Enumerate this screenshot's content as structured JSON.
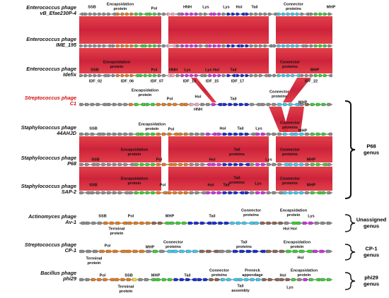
{
  "genomes": [
    {
      "line1": "Enterococcus phage",
      "line2": "vB_Efae230P-4",
      "annotations": [
        [
          "SSB"
        ],
        [
          "Encapsidation",
          "protein"
        ],
        [
          "Pol"
        ],
        [
          "HNH"
        ],
        [
          "Lys"
        ],
        [
          "Lys"
        ],
        [
          "Hol"
        ],
        [
          "Tail"
        ],
        [
          "Connector",
          "proteins"
        ],
        [
          "MHP"
        ]
      ]
    },
    {
      "line1": "Enterococcus phage",
      "line2": "IME_195",
      "annotations": []
    },
    {
      "line1": "Enterococcus phage",
      "line2": "Idefix",
      "annotations": [
        [
          "SSB"
        ],
        [
          "Encapsidation",
          "protein"
        ],
        [
          "Pol"
        ],
        [
          "HNH"
        ],
        [
          "Lys"
        ],
        [
          "Lys Hol"
        ],
        [
          "Tail"
        ],
        [
          "Connector",
          "proteins"
        ],
        [
          "MHP"
        ],
        [
          "IDF_02"
        ],
        [
          "IDF_06"
        ],
        [
          "IDF_07"
        ],
        [
          "IDF_13"
        ],
        [
          "IDF_15"
        ],
        [
          "IDF_17"
        ],
        [
          "IDF_22"
        ]
      ]
    },
    {
      "line1": "Streptococcus phage",
      "line2": "C1",
      "annotations": [
        [
          "Encapsidation",
          "protein"
        ],
        [
          "Pol"
        ],
        [
          "Hol"
        ],
        [
          "HNH"
        ],
        [
          "Tail"
        ],
        [
          "Connector",
          "proteins"
        ],
        [
          "MHP"
        ]
      ]
    },
    {
      "line1": "Staphylococcus phage",
      "line2": "44AHJD",
      "annotations": [
        [
          "SSB"
        ],
        [
          "Encapsidation",
          "protein"
        ],
        [
          "Pol"
        ],
        [
          "Hol"
        ],
        [
          "Tail"
        ],
        [
          "Lys"
        ],
        [
          "Connector",
          "proteins"
        ],
        [
          "MHP"
        ]
      ]
    },
    {
      "line1": "Staphylococcus phage",
      "line2": "P68",
      "annotations": [
        [
          "SSB"
        ],
        [
          "Encapsidation",
          "protein"
        ],
        [
          "Pol"
        ],
        [
          "Hol"
        ],
        [
          "Tail",
          "proteins"
        ],
        [
          "Lys"
        ],
        [
          "Connector",
          "proteins"
        ],
        [
          "MHP"
        ]
      ]
    },
    {
      "line1": "Staphylococcus phage",
      "line2": "SAP-2",
      "annotations": [
        [
          "SSB"
        ],
        [
          "Encapsidation",
          "protein"
        ],
        [
          "Pol"
        ],
        [
          "Hol"
        ],
        [
          "Tail"
        ],
        [
          "Tail",
          "proteins"
        ],
        [
          "Lys"
        ],
        [
          "Connector",
          "proteins"
        ],
        [
          "MHP"
        ]
      ]
    },
    {
      "line1": "Actinomyces phage",
      "line2": "Av-1",
      "annotations": [
        [
          "SSB"
        ],
        [
          "Pol"
        ],
        [
          "MHP"
        ],
        [
          "Tail"
        ],
        [
          "Connector",
          "proteins"
        ],
        [
          "Encapsidation",
          "protein"
        ],
        [
          "Lys"
        ],
        [
          "Terminal",
          "protein"
        ],
        [
          "Hol Hol"
        ]
      ]
    },
    {
      "line1": "Streptococcus phage",
      "line2": "CP-1",
      "annotations": [
        [
          "Pol"
        ],
        [
          "MHP"
        ],
        [
          "Connector",
          "proteins"
        ],
        [
          "Tail",
          "proteins"
        ],
        [
          "Encapsidation",
          "protein"
        ],
        [
          "Terminal",
          "protein"
        ],
        [
          "Hol"
        ]
      ]
    },
    {
      "line1": "Bacillus phage",
      "line2": "phi29",
      "annotations": [
        [
          "Pol"
        ],
        [
          "SSB"
        ],
        [
          "MHP"
        ],
        [
          "Tail"
        ],
        [
          "Connector",
          "proteins"
        ],
        [
          "Preneck",
          "appendage"
        ],
        [
          "Hol"
        ],
        [
          "Encapsidation",
          "protein"
        ],
        [
          "Terminal",
          "protein"
        ],
        [
          "Tail",
          "assembly"
        ],
        [
          "Lys"
        ]
      ]
    }
  ],
  "groups": [
    [
      "P68",
      "genus"
    ],
    [
      "Unassigned",
      "genus"
    ],
    [
      "CP-1",
      "genus"
    ],
    [
      "phi29",
      "genus"
    ]
  ]
}
